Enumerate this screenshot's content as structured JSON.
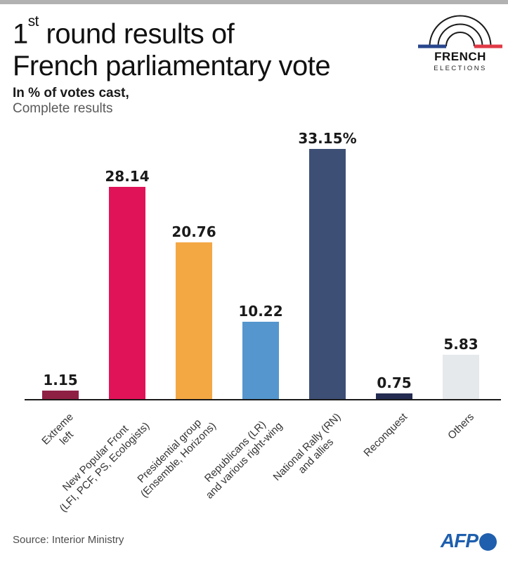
{
  "header": {
    "title_num": "1",
    "title_sup": "st",
    "title_rest": " round results of",
    "title_line2": "French parliamentary vote",
    "subtitle_bold": "In % of votes cast,",
    "subtitle_regular": "Complete results"
  },
  "fe_logo": {
    "name": "FRENCH",
    "sub": "ELECTIONS",
    "flag_blue": "#28468c",
    "flag_red": "#e03a46",
    "arc_color": "#1a1a1a"
  },
  "chart_data": {
    "type": "bar",
    "title": "1st round results of French parliamentary vote",
    "subtitle": "In % of votes cast, Complete results",
    "xlabel": "",
    "ylabel": "% of votes cast",
    "ylim": [
      0,
      35
    ],
    "grid": false,
    "legend": "none",
    "categories": [
      [
        "Extreme",
        "left"
      ],
      [
        "New Popular Front",
        "(LFI, PCF, PS, Ecologists)"
      ],
      [
        "Presidential group",
        "(Ensemble, Horizons)"
      ],
      [
        "Republicans (LR)",
        "and various right-wing"
      ],
      [
        "National Rally (RN)",
        "and allies"
      ],
      [
        "Reconquest"
      ],
      [
        "Others"
      ]
    ],
    "values": [
      1.15,
      28.14,
      20.76,
      10.22,
      33.15,
      0.75,
      5.83
    ],
    "value_labels": [
      "1.15",
      "28.14",
      "20.76",
      "10.22",
      "33.15%",
      "0.75",
      "5.83"
    ],
    "colors": [
      "#8e2044",
      "#e11358",
      "#f4a843",
      "#5596ce",
      "#3e4f75",
      "#242c52",
      "#e6e9eb"
    ]
  },
  "footer": {
    "source": "Source: Interior Ministry",
    "afp": "AFP",
    "afp_color": "#1f5fae"
  }
}
